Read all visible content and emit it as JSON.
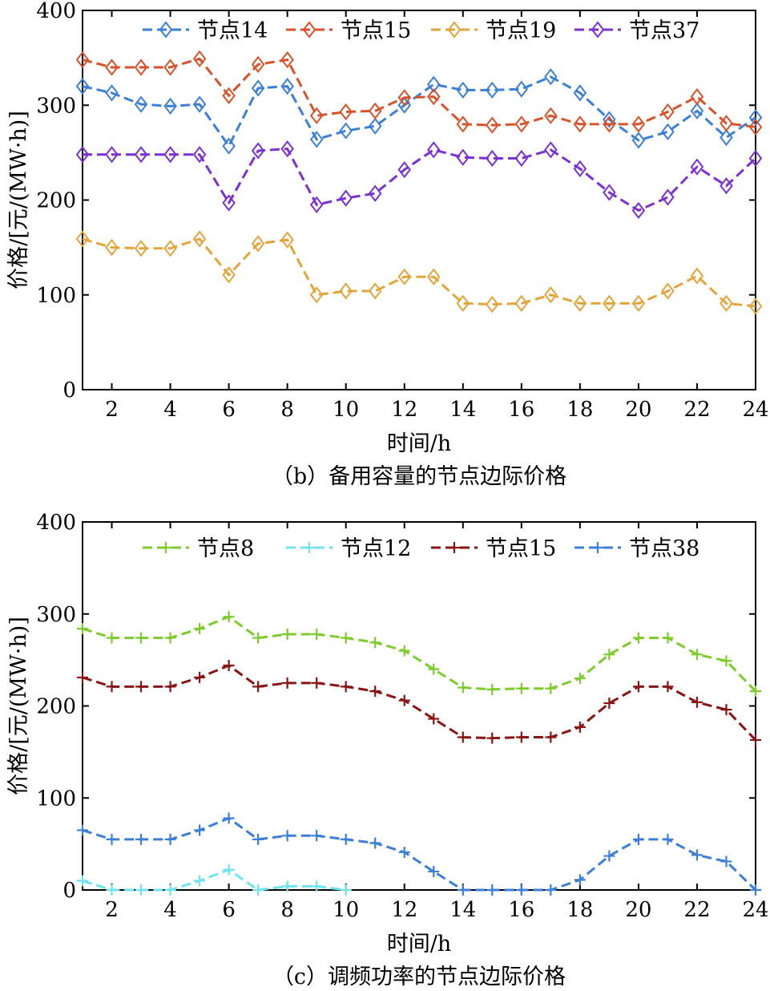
{
  "chart_data": [
    {
      "type": "line",
      "panel": "b",
      "caption": "（b）备用容量的节点边际价格",
      "xlabel": "时间/h",
      "ylabel": "价格/[元/(MW·h)]",
      "xlim": [
        1,
        24
      ],
      "ylim": [
        0,
        400
      ],
      "xticks": [
        2,
        4,
        6,
        8,
        10,
        12,
        14,
        16,
        18,
        20,
        22,
        24
      ],
      "yticks": [
        0,
        100,
        200,
        300,
        400
      ],
      "marker": "diamond",
      "legend_position": "top",
      "x": [
        1,
        2,
        3,
        4,
        5,
        6,
        7,
        8,
        9,
        10,
        11,
        12,
        13,
        14,
        15,
        16,
        17,
        18,
        19,
        20,
        21,
        22,
        23,
        24
      ],
      "series": [
        {
          "name": "节点14",
          "color": "#3b7fd9",
          "values": [
            320,
            313,
            301,
            299,
            301,
            257,
            318,
            320,
            264,
            273,
            278,
            300,
            322,
            316,
            316,
            317,
            330,
            313,
            285,
            263,
            272,
            294,
            266,
            287
          ]
        },
        {
          "name": "节点15",
          "color": "#d9522a",
          "values": [
            348,
            340,
            340,
            340,
            349,
            310,
            343,
            348,
            289,
            293,
            294,
            308,
            309,
            280,
            279,
            280,
            289,
            280,
            280,
            280,
            293,
            309,
            281,
            277
          ]
        },
        {
          "name": "节点19",
          "color": "#e3a53a",
          "values": [
            159,
            150,
            149,
            149,
            159,
            121,
            154,
            158,
            100,
            104,
            104,
            119,
            119,
            91,
            90,
            91,
            100,
            91,
            91,
            91,
            104,
            120,
            91,
            88
          ]
        },
        {
          "name": "节点37",
          "color": "#7b30d6",
          "values": [
            248,
            248,
            248,
            248,
            248,
            197,
            252,
            254,
            195,
            202,
            207,
            232,
            253,
            245,
            244,
            244,
            253,
            233,
            208,
            189,
            203,
            235,
            215,
            244
          ]
        }
      ]
    },
    {
      "type": "line",
      "panel": "c",
      "caption": "（c）调频功率的节点边际价格",
      "xlabel": "时间/h",
      "ylabel": "价格/[元/(MW·h)]",
      "xlim": [
        1,
        24
      ],
      "ylim": [
        0,
        400
      ],
      "xticks": [
        2,
        4,
        6,
        8,
        10,
        12,
        14,
        16,
        18,
        20,
        22,
        24
      ],
      "yticks": [
        0,
        100,
        200,
        300,
        400
      ],
      "marker": "plus",
      "legend_position": "top",
      "x": [
        1,
        2,
        3,
        4,
        5,
        6,
        7,
        8,
        9,
        10,
        11,
        12,
        13,
        14,
        15,
        16,
        17,
        18,
        19,
        20,
        21,
        22,
        23,
        24
      ],
      "series": [
        {
          "name": "节点8",
          "color": "#7dcc2c",
          "values": [
            284,
            274,
            274,
            274,
            284,
            297,
            274,
            278,
            278,
            274,
            269,
            260,
            240,
            220,
            218,
            219,
            219,
            230,
            256,
            274,
            274,
            256,
            249,
            216
          ]
        },
        {
          "name": "节点12",
          "color": "#6fe3ee",
          "values": [
            10,
            0,
            0,
            0,
            10,
            22,
            0,
            4,
            4,
            0,
            null,
            null,
            null,
            null,
            null,
            null,
            null,
            null,
            null,
            null,
            null,
            null,
            null,
            null
          ]
        },
        {
          "name": "节点15",
          "color": "#8a1414",
          "values": [
            231,
            221,
            221,
            221,
            231,
            244,
            221,
            225,
            225,
            221,
            216,
            206,
            186,
            166,
            165,
            166,
            166,
            177,
            203,
            221,
            221,
            204,
            196,
            163
          ]
        },
        {
          "name": "节点38",
          "color": "#3b7fd9",
          "values": [
            65,
            55,
            55,
            55,
            65,
            78,
            55,
            59,
            59,
            55,
            51,
            41,
            20,
            0,
            0,
            0,
            0,
            11,
            37,
            55,
            55,
            38,
            31,
            0
          ]
        }
      ]
    }
  ]
}
